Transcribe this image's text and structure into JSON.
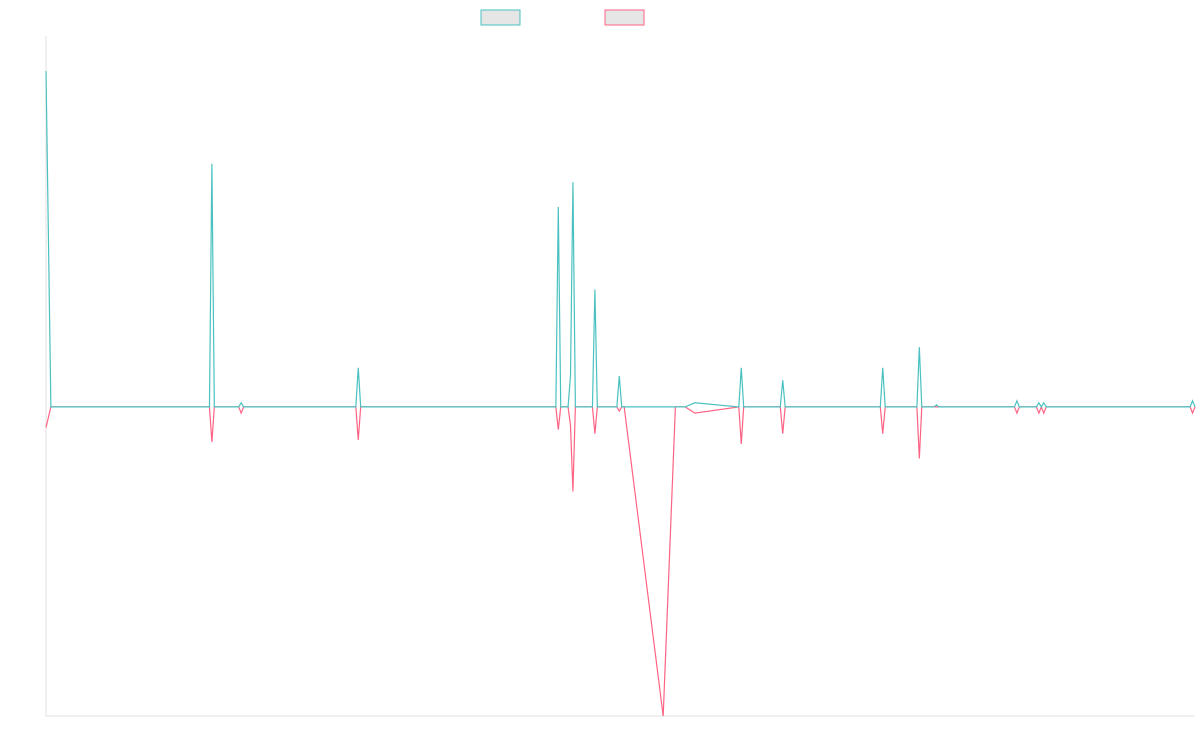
{
  "colors": {
    "series1": "#4bc0c0",
    "series2": "#ff6384",
    "legend_fill": "#e6e6e6",
    "axis": "#e0e0e0"
  },
  "legend": {
    "placement": "top-center",
    "items": [
      {
        "label": "",
        "color": "#4bc0c0"
      },
      {
        "label": "",
        "color": "#ff6384"
      }
    ]
  },
  "chart_data": {
    "type": "line",
    "title": "",
    "xlabel": "",
    "ylabel": "",
    "grid": false,
    "ylim": [
      -150,
      180
    ],
    "x": [
      0,
      2,
      67,
      68,
      69,
      79,
      80,
      81,
      127,
      128,
      129,
      209,
      210,
      211,
      214,
      215,
      216,
      217,
      224,
      225,
      226,
      234,
      235,
      236,
      237,
      253,
      258,
      262,
      266,
      284,
      285,
      286,
      301,
      302,
      303,
      316,
      325,
      342,
      343,
      344,
      357,
      358,
      359,
      364,
      365,
      366,
      397,
      398,
      399,
      406,
      407,
      408,
      409,
      410,
      469,
      470,
      471
    ],
    "series": [
      {
        "values": [
          163,
          0,
          0,
          118,
          0,
          0,
          2,
          0,
          0,
          19,
          0,
          0,
          97,
          0,
          0,
          15,
          109,
          0,
          0,
          57,
          0,
          0,
          15,
          0,
          0,
          0,
          0,
          0,
          2,
          0,
          19,
          0,
          0,
          13,
          0,
          0,
          0,
          0,
          19,
          0,
          0,
          29,
          0,
          0,
          1,
          0,
          0,
          3,
          0,
          0,
          2,
          0,
          2,
          0,
          0,
          3,
          0
        ]
      },
      {
        "values": [
          -10,
          0,
          0,
          -17,
          0,
          0,
          -3,
          0,
          0,
          -16,
          0,
          0,
          -11,
          0,
          0,
          -9,
          -41,
          0,
          0,
          -13,
          0,
          0,
          -2,
          0,
          0,
          -150,
          0,
          0,
          -3,
          0,
          -18,
          0,
          0,
          -13,
          0,
          0,
          0,
          0,
          -13,
          0,
          0,
          -25,
          0,
          0,
          0,
          0,
          0,
          -3,
          0,
          0,
          -3,
          0,
          -3,
          0,
          0,
          -3,
          0
        ]
      }
    ]
  }
}
